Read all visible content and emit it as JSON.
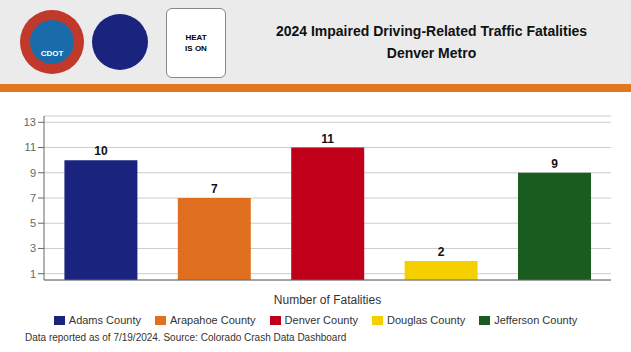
{
  "chart_data": {
    "type": "bar",
    "title": "2024 Impaired Driving-Related Traffic Fatalities",
    "subtitle": "Denver Metro",
    "categories": [
      "Adams County",
      "Arapahoe County",
      "Denver County",
      "Douglas County",
      "Jefferson County"
    ],
    "values": [
      10,
      7,
      11,
      2,
      9
    ],
    "colors": [
      "#1a237e",
      "#e07020",
      "#c0001a",
      "#f5d000",
      "#1a5c20"
    ],
    "xlabel": "Number of Fatalities",
    "ylim": [
      0.5,
      13.5
    ],
    "yticks": [
      1,
      3,
      5,
      7,
      9,
      11,
      13
    ],
    "grid": true,
    "data_labels": true,
    "tick_labels": "y",
    "legend": "bottom",
    "annotations": [
      "CDOT",
      "HEAT",
      "IS ON",
      "Data reported as of 7/19/2024. Source: Colorado Crash Data Dashboard"
    ]
  }
}
